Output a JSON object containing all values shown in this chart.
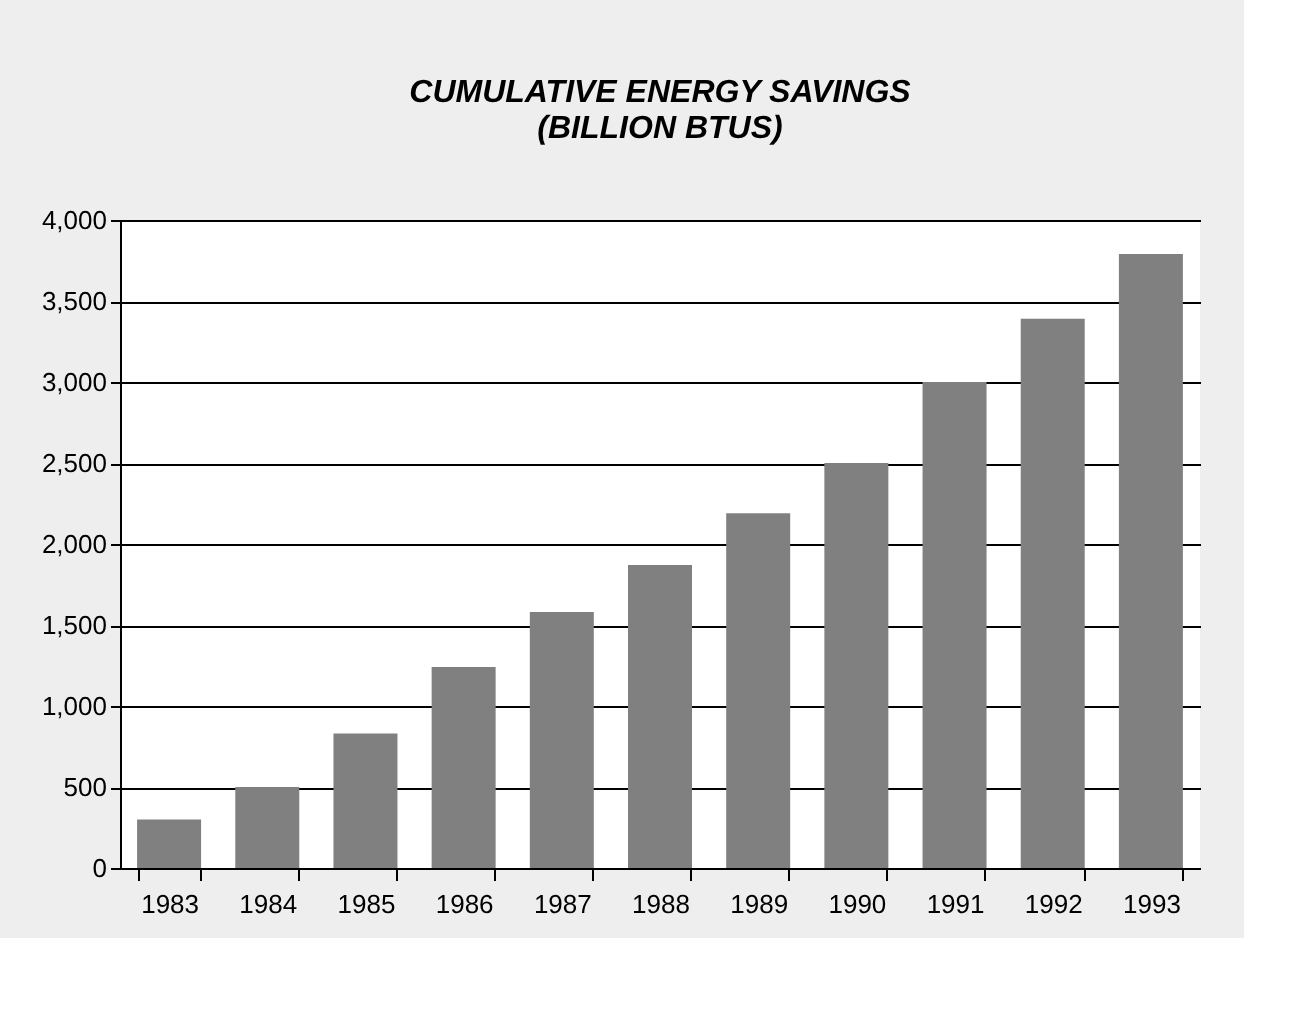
{
  "chart_data": {
    "type": "bar",
    "title": [
      "CUMULATIVE ENERGY SAVINGS",
      "(BILLION BTUS)"
    ],
    "categories": [
      "1983",
      "1984",
      "1985",
      "1986",
      "1987",
      "1988",
      "1989",
      "1990",
      "1991",
      "1992",
      "1993"
    ],
    "values": [
      300,
      500,
      830,
      1240,
      1580,
      1870,
      2190,
      2500,
      3000,
      3390,
      3790
    ],
    "color": "#808080",
    "ylim": [
      0,
      4000
    ],
    "yticks": [
      0,
      500,
      {
        "value": 1000,
        "label": "1,000"
      },
      {
        "value": 1500,
        "label": "1,500"
      },
      {
        "value": 2000,
        "label": "2,000"
      },
      {
        "value": 2500,
        "label": "2,500"
      },
      {
        "value": 3000,
        "label": "3,000"
      },
      {
        "value": 3500,
        "label": "3,500"
      },
      {
        "value": 4000,
        "label": "4,000"
      }
    ],
    "grid": "y"
  }
}
